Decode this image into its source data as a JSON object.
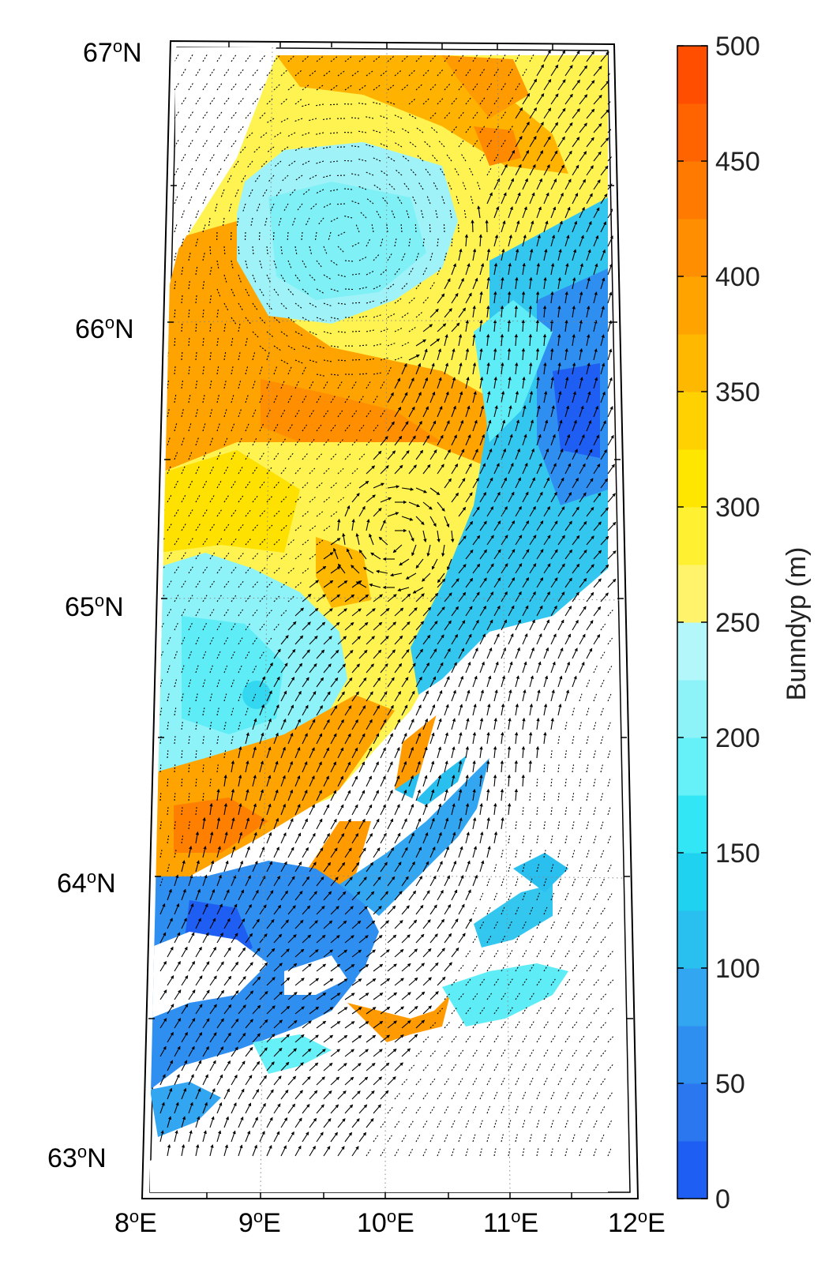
{
  "map": {
    "lat_labels": [
      {
        "deg": "67",
        "sup": "o",
        "hem": "N"
      },
      {
        "deg": "66",
        "sup": "o",
        "hem": "N"
      },
      {
        "deg": "65",
        "sup": "o",
        "hem": "N"
      },
      {
        "deg": "64",
        "sup": "o",
        "hem": "N"
      },
      {
        "deg": "63",
        "sup": "o",
        "hem": "N"
      }
    ],
    "lon_labels": [
      {
        "deg": "8",
        "sup": "o",
        "hem": "E"
      },
      {
        "deg": "9",
        "sup": "o",
        "hem": "E"
      },
      {
        "deg": "10",
        "sup": "o",
        "hem": "E"
      },
      {
        "deg": "11",
        "sup": "o",
        "hem": "E"
      },
      {
        "deg": "12",
        "sup": "o",
        "hem": "E"
      }
    ],
    "extent": {
      "lon": [
        8,
        12
      ],
      "lat": [
        63,
        67
      ]
    },
    "land_color": "#ffffff",
    "arrow_color": "#000000"
  },
  "colorbar": {
    "title": "Bunndyp (m)",
    "ticks": [
      "0",
      "50",
      "100",
      "150",
      "200",
      "250",
      "300",
      "350",
      "400",
      "450",
      "500"
    ],
    "range": [
      0,
      500
    ],
    "levels": 20,
    "colors": [
      "#1f5ef2",
      "#2a77ef",
      "#2f8ff0",
      "#33a6f2",
      "#29bfee",
      "#1fd2ef",
      "#33e6f6",
      "#66f0f7",
      "#8ef3f8",
      "#b3f7fb",
      "#fff36b",
      "#fff132",
      "#ffe600",
      "#ffd100",
      "#ffb800",
      "#ffa300",
      "#ff8f00",
      "#ff7a00",
      "#ff6400",
      "#ff4e00"
    ]
  }
}
